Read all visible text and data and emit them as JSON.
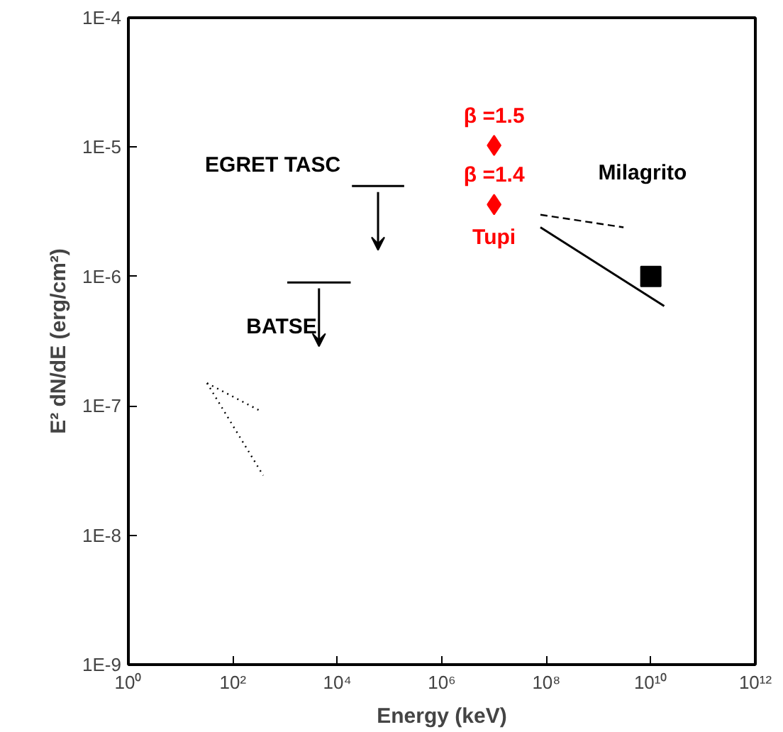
{
  "chart_data": {
    "type": "scatter",
    "xlabel": "Energy (keV)",
    "ylabel": "E² dN/dE (erg/cm²)",
    "log": "xy",
    "grid": false,
    "xlim": [
      1,
      1000000000000.0
    ],
    "ylim": [
      1e-09,
      0.0001
    ],
    "xticks": [
      {
        "value": 1,
        "label": "10⁰"
      },
      {
        "value": 100,
        "label": "10²"
      },
      {
        "value": 10000,
        "label": "10⁴"
      },
      {
        "value": 1000000,
        "label": "10⁶"
      },
      {
        "value": 100000000,
        "label": "10⁸"
      },
      {
        "value": 10000000000,
        "label": "10¹⁰"
      },
      {
        "value": 1000000000000,
        "label": "10¹²"
      }
    ],
    "yticks": [
      {
        "value": 1e-09,
        "label": "1E-9"
      },
      {
        "value": 1e-08,
        "label": "1E-8"
      },
      {
        "value": 1e-07,
        "label": "1E-7"
      },
      {
        "value": 1e-06,
        "label": "1E-6"
      },
      {
        "value": 1e-05,
        "label": "1E-5"
      },
      {
        "value": 0.0001,
        "label": "1E-4"
      }
    ],
    "series": [
      {
        "type": "line",
        "color": "#000000",
        "x": [
          19000,
          190000
        ],
        "values": [
          5e-06,
          5e-06
        ]
      },
      {
        "type": "line",
        "color": "#000000",
        "x": [
          1100,
          18000
        ],
        "values": [
          9e-07,
          9e-07
        ]
      },
      {
        "type": "line",
        "color": "#000000",
        "line_style": "dotted",
        "x": [
          32,
          360
        ],
        "values": [
          1.5e-07,
          9e-08
        ]
      },
      {
        "type": "line",
        "color": "#000000",
        "line_style": "dotted",
        "x": [
          32,
          380
        ],
        "values": [
          1.5e-07,
          2.9e-08
        ]
      },
      {
        "marker": "diamond",
        "color": "#ff0000",
        "x": [
          10000000.0,
          10000000.0
        ],
        "values": [
          1.03e-05,
          3.6e-06
        ]
      },
      {
        "type": "line",
        "color": "#000000",
        "line_style": "dashed",
        "x": [
          77000000.0,
          3000000000.0
        ],
        "values": [
          3e-06,
          2.4e-06
        ]
      },
      {
        "type": "line",
        "color": "#000000",
        "x": [
          77000000.0,
          18000000000.0
        ],
        "values": [
          2.4e-06,
          5.9e-07
        ]
      },
      {
        "marker": "square",
        "color": "#000000",
        "x": [
          10000000000.0
        ],
        "values": [
          1e-06
        ]
      }
    ],
    "annotations": [
      {
        "text": "EGRET TASC",
        "x": 19000,
        "y": 5e-06
      },
      {
        "text": "BATSE",
        "x": 1100,
        "y": 9e-07
      },
      {
        "text": "β =1.5",
        "x": 10000000.0,
        "y": 1.03e-05
      },
      {
        "text": "β =1.4",
        "x": 10000000.0,
        "y": 3.6e-06
      },
      {
        "text": "Tupi",
        "x": 10000000.0,
        "y": 3.6e-06
      },
      "Milagrito"
    ]
  }
}
